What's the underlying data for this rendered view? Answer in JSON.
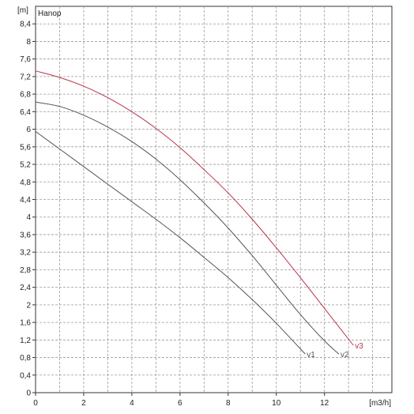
{
  "chart_data": {
    "type": "line",
    "title": "Hanop",
    "ylabel": "[m]",
    "xlabel": "[m3/h]",
    "xlim": [
      0,
      14.8
    ],
    "ylim": [
      0,
      8.8
    ],
    "x_ticks": [
      "0",
      "2",
      "4",
      "6",
      "8",
      "10",
      "12"
    ],
    "y_ticks": [
      "0",
      "0,4",
      "0,8",
      "1,2",
      "1,6",
      "2",
      "2,4",
      "2,8",
      "3,2",
      "3,6",
      "4",
      "4,4",
      "4,8",
      "5,2",
      "5,6",
      "6",
      "6,4",
      "6,8",
      "7,2",
      "7,6",
      "8",
      "8,4"
    ],
    "grid": true,
    "colors": {
      "v1": "#555555",
      "v2": "#555555",
      "v3": "#b8344a",
      "axis": "#333333",
      "grid": "#9a9a9a"
    },
    "series": [
      {
        "name": "v1",
        "x": [
          0,
          1,
          2,
          3,
          4,
          5,
          6,
          7,
          8,
          9,
          10,
          11.2
        ],
        "y": [
          5.95,
          5.55,
          5.15,
          4.75,
          4.35,
          3.95,
          3.53,
          3.08,
          2.62,
          2.12,
          1.58,
          0.88
        ]
      },
      {
        "name": "v2",
        "x": [
          0,
          1,
          2,
          3,
          4,
          5,
          6,
          7,
          8,
          9,
          10,
          11,
          12,
          12.6
        ],
        "y": [
          6.62,
          6.52,
          6.32,
          6.05,
          5.72,
          5.32,
          4.85,
          4.32,
          3.75,
          3.12,
          2.45,
          1.78,
          1.18,
          0.88
        ]
      },
      {
        "name": "v3",
        "x": [
          0,
          1,
          2,
          3,
          4,
          5,
          6,
          7,
          8,
          9,
          10,
          11,
          12,
          13.2
        ],
        "y": [
          7.33,
          7.18,
          6.98,
          6.72,
          6.4,
          6.02,
          5.58,
          5.08,
          4.55,
          3.95,
          3.3,
          2.62,
          1.92,
          1.08
        ]
      }
    ]
  }
}
